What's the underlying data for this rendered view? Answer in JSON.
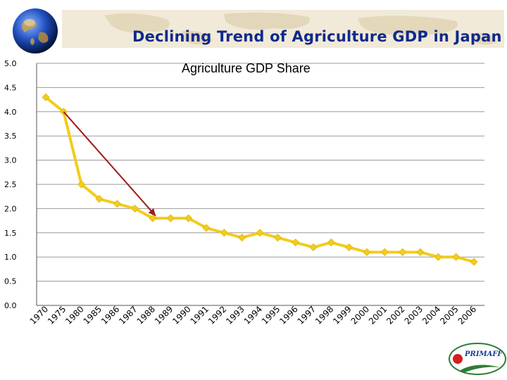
{
  "header": {
    "title": "Declining Trend of Agriculture GDP in Japan"
  },
  "logo": {
    "text": "PRIMAFF"
  },
  "chart_data": {
    "type": "line",
    "title": "Agriculture GDP Share",
    "categories": [
      "1970",
      "1975",
      "1980",
      "1985",
      "1986",
      "1987",
      "1988",
      "1989",
      "1990",
      "1991",
      "1992",
      "1993",
      "1994",
      "1995",
      "1996",
      "1997",
      "1998",
      "1999",
      "2000",
      "2001",
      "2002",
      "2003",
      "2004",
      "2005",
      "2006"
    ],
    "series": [
      {
        "name": "Agriculture GDP Share",
        "color": "#f2cc1e",
        "values": [
          4.3,
          4.0,
          2.5,
          2.2,
          2.1,
          2.0,
          1.8,
          1.8,
          1.8,
          1.6,
          1.5,
          1.4,
          1.5,
          1.4,
          1.3,
          1.2,
          1.3,
          1.2,
          1.1,
          1.1,
          1.1,
          1.1,
          1.0,
          1.0,
          0.9
        ]
      }
    ],
    "yticks": [
      "0.0",
      "0.5",
      "1.0",
      "1.5",
      "2.0",
      "2.5",
      "3.0",
      "3.5",
      "4.0",
      "4.5",
      "5.0"
    ],
    "ylim": [
      0,
      5
    ],
    "grid": true,
    "annotation": {
      "type": "arrow",
      "from": {
        "category": "1975",
        "value": 4.0
      },
      "to": {
        "category": "1988",
        "value": 1.85
      },
      "color": "#9e1c1c"
    }
  }
}
